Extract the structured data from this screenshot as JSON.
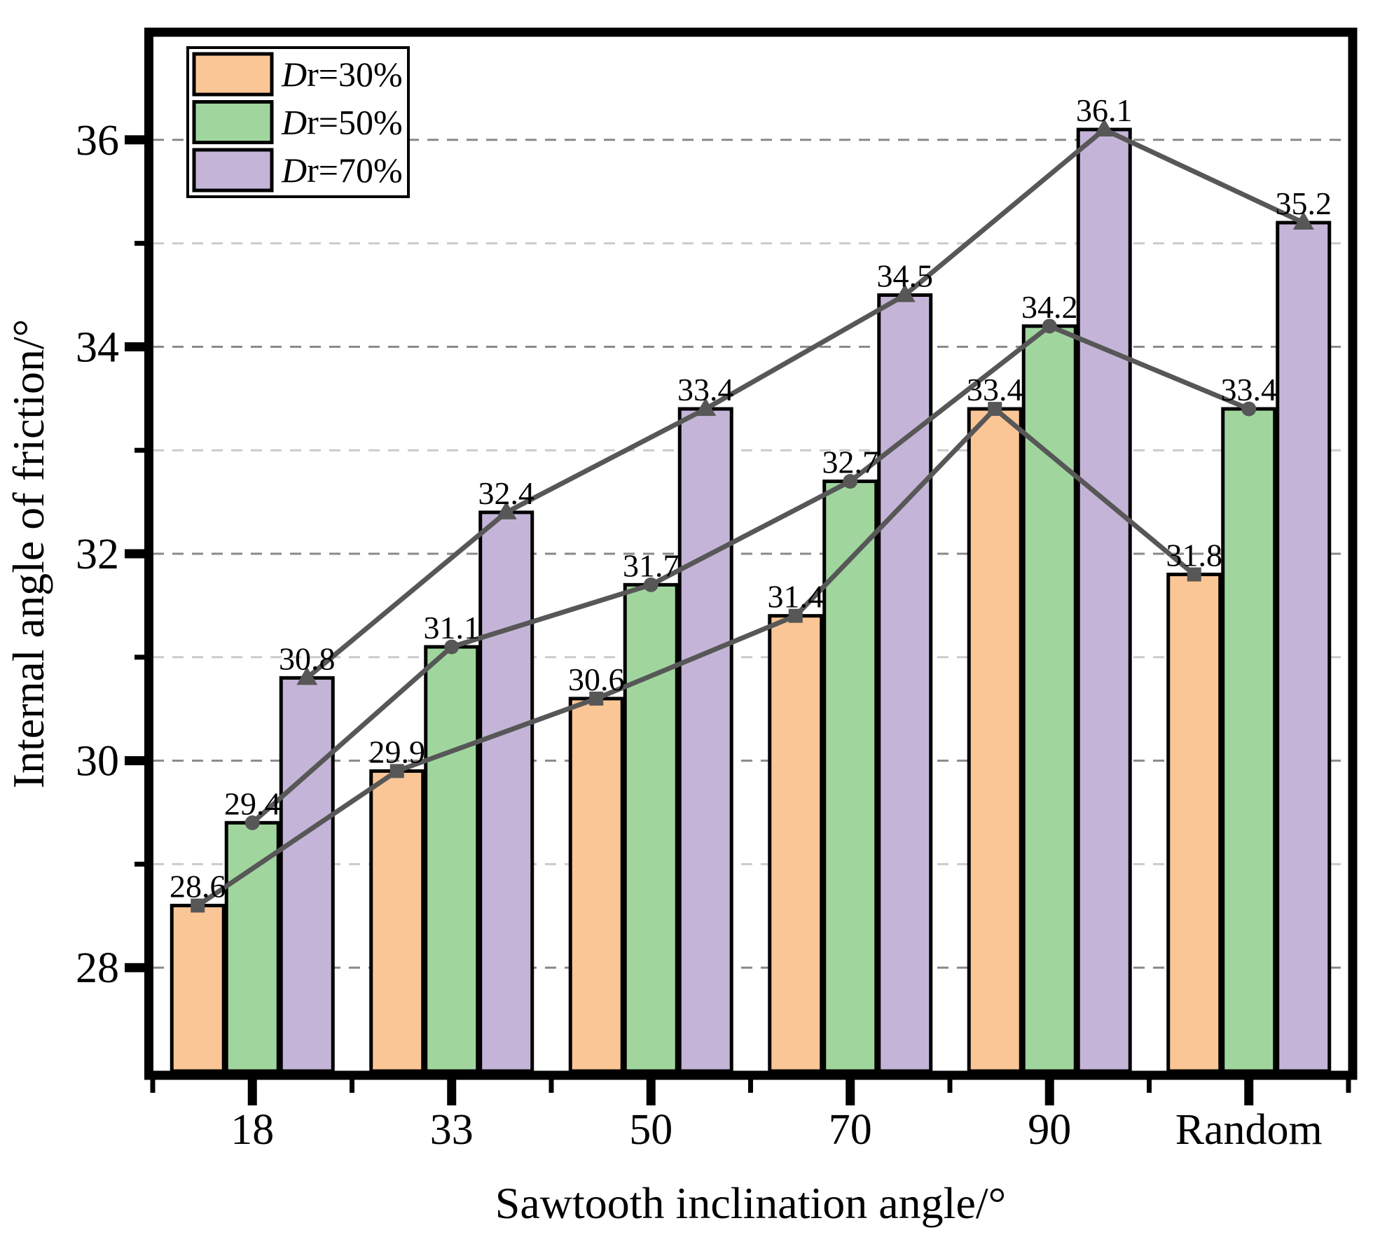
{
  "chart_data": {
    "type": "bar",
    "categories": [
      "18",
      "33",
      "50",
      "70",
      "90",
      "Random"
    ],
    "series": [
      {
        "name": "Dr=30%",
        "color": "#FBC696",
        "marker": "square",
        "values": [
          28.6,
          29.9,
          30.6,
          31.4,
          33.4,
          31.8
        ]
      },
      {
        "name": "Dr=50%",
        "color": "#A0D69E",
        "marker": "circle",
        "values": [
          29.4,
          31.1,
          31.7,
          32.7,
          34.2,
          33.4
        ]
      },
      {
        "name": "Dr=70%",
        "color": "#C4B5D8",
        "marker": "triangle",
        "values": [
          30.8,
          32.4,
          33.4,
          34.5,
          36.1,
          35.2
        ]
      }
    ],
    "title": "",
    "xlabel": "Sawtooth inclination angle/°",
    "ylabel": "Internal angle of friction/°",
    "ylim": [
      27,
      37
    ],
    "y_major_ticks": [
      28,
      30,
      32,
      34,
      36
    ],
    "y_minor_ticks": [
      29,
      31,
      33,
      35
    ],
    "grid": {
      "major_color": "#898989",
      "minor_color": "#cbcbcb",
      "style": "dashed",
      "orientation": "horizontal"
    },
    "bar_edge_color": "#000000",
    "line_color": "#575757",
    "data_label_decimals": 1,
    "legend": {
      "position": "top-left",
      "items": [
        {
          "label": "Dr=30%",
          "italic_prefix": "D",
          "rest": "r=30%"
        },
        {
          "label": "Dr=50%",
          "italic_prefix": "D",
          "rest": "r=50%"
        },
        {
          "label": "Dr=70%",
          "italic_prefix": "D",
          "rest": "r=70%"
        }
      ]
    }
  }
}
